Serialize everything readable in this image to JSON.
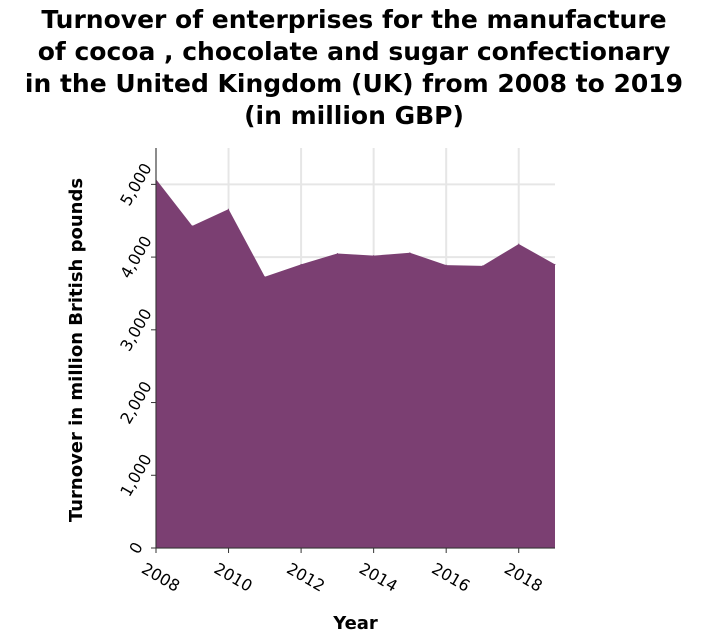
{
  "chart_data": {
    "type": "area",
    "title_lines": [
      "Turnover of enterprises for the manufacture",
      "of cocoa , chocolate and sugar confectionary",
      "in the United Kingdom (UK) from 2008 to 2019",
      "(in million GBP)"
    ],
    "xlabel": "Year",
    "ylabel": "Turnover in million British pounds",
    "x": [
      2008,
      2009,
      2010,
      2011,
      2012,
      2013,
      2014,
      2015,
      2016,
      2017,
      2018,
      2019
    ],
    "values": [
      5070,
      4430,
      4660,
      3730,
      3900,
      4050,
      4020,
      4060,
      3890,
      3880,
      4180,
      3900
    ],
    "xlim": [
      2008,
      2019
    ],
    "ylim": [
      0,
      5500
    ],
    "x_ticks": [
      2008,
      2010,
      2012,
      2014,
      2016,
      2018
    ],
    "y_ticks": [
      0,
      1000,
      2000,
      3000,
      4000,
      5000
    ],
    "y_tick_labels": [
      "0",
      "1,000",
      "2,000",
      "3,000",
      "4,000",
      "5,000"
    ],
    "grid": true,
    "fill_color": "#7b3f72",
    "grid_color": "#e6e6e6"
  }
}
